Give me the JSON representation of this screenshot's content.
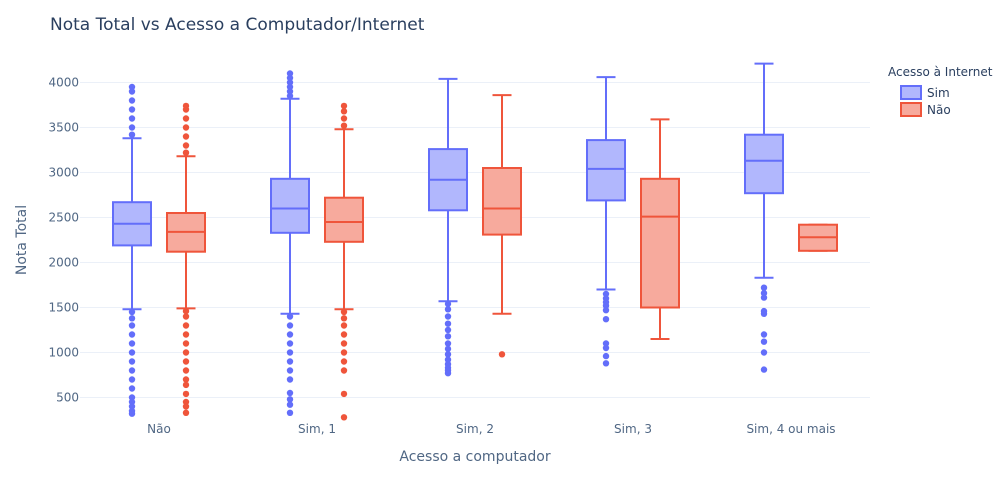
{
  "chart_data": {
    "type": "box",
    "title": "Nota Total vs Acesso a Computador/Internet",
    "xlabel": "Acesso a computador",
    "ylabel": "Nota Total",
    "categories": [
      "Não",
      "Sim, 1",
      "Sim, 2",
      "Sim, 3",
      "Sim, 4 ou mais"
    ],
    "ylim": [
      250,
      4250
    ],
    "yticks": [
      500,
      1000,
      1500,
      2000,
      2500,
      3000,
      3500,
      4000
    ],
    "grid": true,
    "legend": {
      "title": "Acesso à Internet",
      "position": "top-right",
      "items": [
        "Sim",
        "Não"
      ]
    },
    "series": [
      {
        "name": "Sim",
        "color": "#636efa",
        "fill": "#b1b7fd",
        "boxes": [
          {
            "category": "Não",
            "lowerfence": 1480,
            "q1": 2190,
            "median": 2430,
            "q3": 2670,
            "upperfence": 3380,
            "outliers_low": [
              1450,
              1380,
              1300,
              1200,
              1100,
              1000,
              900,
              800,
              700,
              600,
              500,
              450,
              400,
              350,
              320
            ],
            "outliers_high": [
              3420,
              3500,
              3600,
              3700,
              3800,
              3900,
              3950
            ]
          },
          {
            "category": "Sim, 1",
            "lowerfence": 1430,
            "q1": 2330,
            "median": 2600,
            "q3": 2930,
            "upperfence": 3820,
            "outliers_low": [
              1400,
              1300,
              1200,
              1100,
              1000,
              900,
              800,
              700,
              550,
              480,
              420,
              330
            ],
            "outliers_high": [
              3850,
              3900,
              3950,
              4000,
              4050,
              4100
            ]
          },
          {
            "category": "Sim, 2",
            "lowerfence": 1570,
            "q1": 2580,
            "median": 2920,
            "q3": 3260,
            "upperfence": 4040,
            "outliers_low": [
              1540,
              1480,
              1400,
              1320,
              1250,
              1180,
              1100,
              1040,
              980,
              920,
              870,
              830,
              800,
              770
            ],
            "outliers_high": []
          },
          {
            "category": "Sim, 3",
            "lowerfence": 1700,
            "q1": 2690,
            "median": 3040,
            "q3": 3360,
            "upperfence": 4060,
            "outliers_low": [
              1650,
              1600,
              1560,
              1520,
              1470,
              1370,
              1100,
              1050,
              960,
              880
            ],
            "outliers_high": []
          },
          {
            "category": "Sim, 4 ou mais",
            "lowerfence": 1830,
            "q1": 2770,
            "median": 3130,
            "q3": 3420,
            "upperfence": 4210,
            "outliers_low": [
              1720,
              1660,
              1610,
              1460,
              1430,
              1200,
              1120,
              1000,
              810
            ],
            "outliers_high": []
          }
        ]
      },
      {
        "name": "Não",
        "color": "#ef553b",
        "fill": "#f7aa9d",
        "boxes": [
          {
            "category": "Não",
            "lowerfence": 1490,
            "q1": 2120,
            "median": 2340,
            "q3": 2550,
            "upperfence": 3180,
            "outliers_low": [
              1460,
              1400,
              1300,
              1200,
              1100,
              1000,
              900,
              800,
              700,
              640,
              540,
              450,
              400,
              330
            ],
            "outliers_high": [
              3220,
              3300,
              3400,
              3500,
              3600,
              3700,
              3740
            ]
          },
          {
            "category": "Sim, 1",
            "lowerfence": 1480,
            "q1": 2230,
            "median": 2450,
            "q3": 2720,
            "upperfence": 3480,
            "outliers_low": [
              1450,
              1380,
              1300,
              1200,
              1100,
              1000,
              900,
              800,
              540,
              280
            ],
            "outliers_high": [
              3520,
              3600,
              3680,
              3740
            ]
          },
          {
            "category": "Sim, 2",
            "lowerfence": 1430,
            "q1": 2310,
            "median": 2600,
            "q3": 3050,
            "upperfence": 3860,
            "outliers_low": [
              980
            ],
            "outliers_high": []
          },
          {
            "category": "Sim, 3",
            "lowerfence": 1150,
            "q1": 1500,
            "median": 2510,
            "q3": 2930,
            "upperfence": 3590,
            "outliers_low": [],
            "outliers_high": []
          },
          {
            "category": "Sim, 4 ou mais",
            "lowerfence": 2130,
            "q1": 2130,
            "median": 2280,
            "q3": 2420,
            "upperfence": 2420,
            "outliers_low": [],
            "outliers_high": []
          }
        ]
      }
    ]
  }
}
